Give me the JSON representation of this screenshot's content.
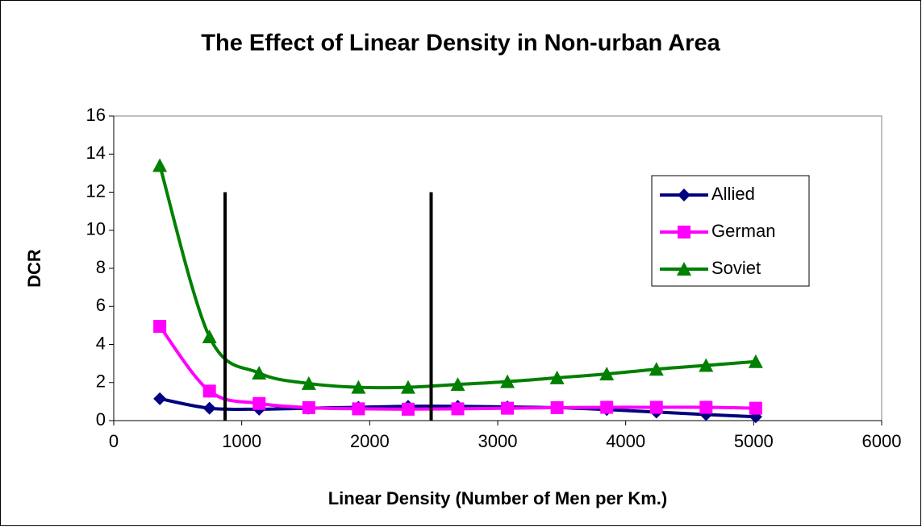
{
  "chart_data": {
    "type": "line",
    "title": "The Effect of Linear Density in Non-urban Area",
    "x_label": "Linear Density (Number of Men per Km.)",
    "y_label": "DCR",
    "x": [
      360,
      748,
      1136,
      1524,
      1912,
      2300,
      2688,
      3076,
      3464,
      3852,
      4240,
      4628,
      5016
    ],
    "series": [
      {
        "name": "Allied",
        "color": "#000080",
        "marker": "diamond",
        "values": [
          1.15,
          0.65,
          0.6,
          0.65,
          0.7,
          0.75,
          0.75,
          0.72,
          0.68,
          0.58,
          0.45,
          0.32,
          0.2
        ]
      },
      {
        "name": "German",
        "color": "#ff00ff",
        "marker": "square",
        "values": [
          4.95,
          1.55,
          0.9,
          0.68,
          0.62,
          0.6,
          0.62,
          0.65,
          0.68,
          0.7,
          0.7,
          0.7,
          0.65
        ]
      },
      {
        "name": "Soviet",
        "color": "#008000",
        "marker": "triangle",
        "values": [
          13.4,
          4.4,
          2.5,
          1.95,
          1.75,
          1.75,
          1.9,
          2.05,
          2.25,
          2.45,
          2.7,
          2.9,
          3.1
        ]
      }
    ],
    "reference_lines": [
      {
        "x": 870,
        "y": [
          0,
          12
        ]
      },
      {
        "x": 2480,
        "y": [
          0,
          12
        ]
      }
    ],
    "xlim": [
      0,
      6000
    ],
    "xticks": [
      0,
      1000,
      2000,
      3000,
      4000,
      5000,
      6000
    ],
    "ylim": [
      0,
      16
    ],
    "yticks": [
      0,
      2,
      4,
      6,
      8,
      10,
      12,
      14,
      16
    ],
    "grid": false,
    "smooth": true,
    "legend": "right"
  }
}
